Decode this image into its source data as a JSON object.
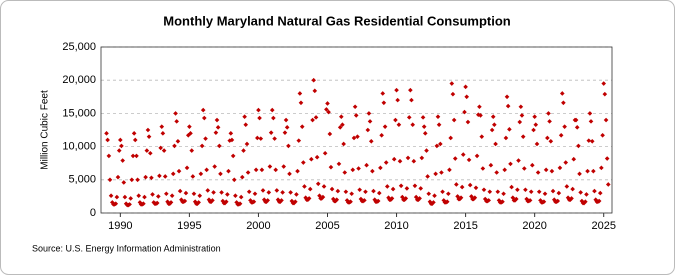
{
  "chart_data": {
    "type": "scatter",
    "title": "Monthly Maryland Natural Gas Residential Consumption",
    "y_label": "Million Cubic Feet",
    "source": "Source: U.S. Energy Information Administration",
    "color": "#c00000",
    "grid": true,
    "xlim": [
      1988.6,
      2025.6
    ],
    "xticks": [
      1990,
      1995,
      2000,
      2005,
      2010,
      2015,
      2020,
      2025
    ],
    "ylim": [
      0,
      25000
    ],
    "yticks": [
      0,
      {
        "value": 5000,
        "label": "5,000"
      },
      {
        "value": 10000,
        "label": "10,000"
      },
      {
        "value": 15000,
        "label": "15,000"
      },
      {
        "value": 20000,
        "label": "20,000"
      },
      {
        "value": 25000,
        "label": "25,000"
      }
    ],
    "x": [
      1989.0,
      1989.08,
      1989.17,
      1989.25,
      1989.33,
      1989.42,
      1989.5,
      1989.58,
      1989.67,
      1989.75,
      1989.83,
      1989.92,
      1990.0,
      1990.08,
      1990.17,
      1990.25,
      1990.33,
      1990.42,
      1990.5,
      1990.58,
      1990.67,
      1990.75,
      1990.83,
      1990.92,
      1991.0,
      1991.08,
      1991.17,
      1991.25,
      1991.33,
      1991.42,
      1991.5,
      1991.58,
      1991.67,
      1991.75,
      1991.83,
      1991.92,
      1992.0,
      1992.08,
      1992.17,
      1992.25,
      1992.33,
      1992.42,
      1992.5,
      1992.58,
      1992.67,
      1992.75,
      1992.83,
      1992.92,
      1993.0,
      1993.08,
      1993.17,
      1993.25,
      1993.33,
      1993.42,
      1993.5,
      1993.58,
      1993.67,
      1993.75,
      1993.83,
      1993.92,
      1994.0,
      1994.08,
      1994.17,
      1994.25,
      1994.33,
      1994.42,
      1994.5,
      1994.58,
      1994.67,
      1994.75,
      1994.83,
      1994.92,
      1995.0,
      1995.08,
      1995.17,
      1995.25,
      1995.33,
      1995.42,
      1995.5,
      1995.58,
      1995.67,
      1995.75,
      1995.83,
      1995.92,
      1996.0,
      1996.08,
      1996.17,
      1996.25,
      1996.33,
      1996.42,
      1996.5,
      1996.58,
      1996.67,
      1996.75,
      1996.83,
      1996.92,
      1997.0,
      1997.08,
      1997.17,
      1997.25,
      1997.33,
      1997.42,
      1997.5,
      1997.58,
      1997.67,
      1997.75,
      1997.83,
      1997.92,
      1998.0,
      1998.08,
      1998.17,
      1998.25,
      1998.33,
      1998.42,
      1998.5,
      1998.58,
      1998.67,
      1998.75,
      1998.83,
      1998.92,
      1999.0,
      1999.08,
      1999.17,
      1999.25,
      1999.33,
      1999.42,
      1999.5,
      1999.58,
      1999.67,
      1999.75,
      1999.83,
      1999.92,
      2000.0,
      2000.08,
      2000.17,
      2000.25,
      2000.33,
      2000.42,
      2000.5,
      2000.58,
      2000.67,
      2000.75,
      2000.83,
      2000.92,
      2001.0,
      2001.08,
      2001.17,
      2001.25,
      2001.33,
      2001.42,
      2001.5,
      2001.58,
      2001.67,
      2001.75,
      2001.83,
      2001.92,
      2002.0,
      2002.08,
      2002.17,
      2002.25,
      2002.33,
      2002.42,
      2002.5,
      2002.58,
      2002.67,
      2002.75,
      2002.83,
      2002.92,
      2003.0,
      2003.08,
      2003.17,
      2003.25,
      2003.33,
      2003.42,
      2003.5,
      2003.58,
      2003.67,
      2003.75,
      2003.83,
      2003.92,
      2004.0,
      2004.08,
      2004.17,
      2004.25,
      2004.33,
      2004.42,
      2004.5,
      2004.58,
      2004.67,
      2004.75,
      2004.83,
      2004.92,
      2005.0,
      2005.08,
      2005.17,
      2005.25,
      2005.33,
      2005.42,
      2005.5,
      2005.58,
      2005.67,
      2005.75,
      2005.83,
      2005.92,
      2006.0,
      2006.08,
      2006.17,
      2006.25,
      2006.33,
      2006.42,
      2006.5,
      2006.58,
      2006.67,
      2006.75,
      2006.83,
      2006.92,
      2007.0,
      2007.08,
      2007.17,
      2007.25,
      2007.33,
      2007.42,
      2007.5,
      2007.58,
      2007.67,
      2007.75,
      2007.83,
      2007.92,
      2008.0,
      2008.08,
      2008.17,
      2008.25,
      2008.33,
      2008.42,
      2008.5,
      2008.58,
      2008.67,
      2008.75,
      2008.83,
      2008.92,
      2009.0,
      2009.08,
      2009.17,
      2009.25,
      2009.33,
      2009.42,
      2009.5,
      2009.58,
      2009.67,
      2009.75,
      2009.83,
      2009.92,
      2010.0,
      2010.08,
      2010.17,
      2010.25,
      2010.33,
      2010.42,
      2010.5,
      2010.58,
      2010.67,
      2010.75,
      2010.83,
      2010.92,
      2011.0,
      2011.08,
      2011.17,
      2011.25,
      2011.33,
      2011.42,
      2011.5,
      2011.58,
      2011.67,
      2011.75,
      2011.83,
      2011.92,
      2012.0,
      2012.08,
      2012.17,
      2012.25,
      2012.33,
      2012.42,
      2012.5,
      2012.58,
      2012.67,
      2012.75,
      2012.83,
      2012.92,
      2013.0,
      2013.08,
      2013.17,
      2013.25,
      2013.33,
      2013.42,
      2013.5,
      2013.58,
      2013.67,
      2013.75,
      2013.83,
      2013.92,
      2014.0,
      2014.08,
      2014.17,
      2014.25,
      2014.33,
      2014.42,
      2014.5,
      2014.58,
      2014.67,
      2014.75,
      2014.83,
      2014.92,
      2015.0,
      2015.08,
      2015.17,
      2015.25,
      2015.33,
      2015.42,
      2015.5,
      2015.58,
      2015.67,
      2015.75,
      2015.83,
      2015.92,
      2016.0,
      2016.08,
      2016.17,
      2016.25,
      2016.33,
      2016.42,
      2016.5,
      2016.58,
      2016.67,
      2016.75,
      2016.83,
      2016.92,
      2017.0,
      2017.08,
      2017.17,
      2017.25,
      2017.33,
      2017.42,
      2017.5,
      2017.58,
      2017.67,
      2017.75,
      2017.83,
      2017.92,
      2018.0,
      2018.08,
      2018.17,
      2018.25,
      2018.33,
      2018.42,
      2018.5,
      2018.58,
      2018.67,
      2018.75,
      2018.83,
      2018.92,
      2019.0,
      2019.08,
      2019.17,
      2019.25,
      2019.33,
      2019.42,
      2019.5,
      2019.58,
      2019.67,
      2019.75,
      2019.83,
      2019.92,
      2020.0,
      2020.08,
      2020.17,
      2020.25,
      2020.33,
      2020.42,
      2020.5,
      2020.58,
      2020.67,
      2020.75,
      2020.83,
      2020.92,
      2021.0,
      2021.08,
      2021.17,
      2021.25,
      2021.33,
      2021.42,
      2021.5,
      2021.58,
      2021.67,
      2021.75,
      2021.83,
      2021.92,
      2022.0,
      2022.08,
      2022.17,
      2022.25,
      2022.33,
      2022.42,
      2022.5,
      2022.58,
      2022.67,
      2022.75,
      2022.83,
      2022.92,
      2023.0,
      2023.08,
      2023.17,
      2023.25,
      2023.33,
      2023.42,
      2023.5,
      2023.58,
      2023.67,
      2023.75,
      2023.83,
      2023.92,
      2024.0,
      2024.08,
      2024.17,
      2024.25,
      2024.33,
      2024.42,
      2024.5,
      2024.58,
      2024.67,
      2024.75,
      2024.83,
      2024.92,
      2025.0,
      2025.08,
      2025.17,
      2025.25,
      2025.33
    ],
    "values": [
      12000,
      11000,
      8600,
      5000,
      2600,
      1600,
      1300,
      1300,
      1400,
      2400,
      5400,
      9400,
      11000,
      10100,
      7900,
      4600,
      2400,
      1400,
      1200,
      1200,
      1300,
      2200,
      5000,
      8600,
      12000,
      11000,
      8600,
      5000,
      2600,
      1600,
      1300,
      1300,
      1400,
      2400,
      5400,
      9400,
      12500,
      11500,
      9000,
      5300,
      2800,
      1600,
      1400,
      1400,
      1500,
      2500,
      5600,
      9800,
      13000,
      12000,
      9400,
      5500,
      2900,
      1700,
      1400,
      1400,
      1600,
      2600,
      5900,
      10100,
      15000,
      13800,
      10800,
      6300,
      3300,
      2000,
      1700,
      1700,
      1800,
      3000,
      6800,
      11700,
      13000,
      12000,
      9400,
      5500,
      2900,
      1700,
      1400,
      1400,
      1600,
      2600,
      5900,
      10100,
      15500,
      14300,
      11200,
      6500,
      3400,
      2000,
      1700,
      1700,
      1900,
      3100,
      7000,
      12100,
      14000,
      12900,
      10100,
      5900,
      3100,
      1800,
      1500,
      1500,
      1700,
      2800,
      6300,
      10900,
      12000,
      11000,
      8600,
      5000,
      2600,
      1600,
      1300,
      1300,
      1400,
      2400,
      5400,
      9400,
      14500,
      13300,
      10400,
      6100,
      3200,
      1900,
      1600,
      1600,
      1700,
      2900,
      6500,
      11300,
      15500,
      14300,
      11200,
      6500,
      3400,
      2000,
      1700,
      1700,
      1900,
      3100,
      7000,
      12100,
      15500,
      14300,
      11200,
      6500,
      3400,
      2000,
      1700,
      1700,
      1900,
      3100,
      7000,
      12100,
      14000,
      12900,
      10100,
      5900,
      3100,
      1800,
      1500,
      1500,
      1700,
      2800,
      6300,
      10900,
      18000,
      16600,
      13000,
      7600,
      4000,
      2300,
      2000,
      2000,
      2200,
      3600,
      8100,
      14000,
      20000,
      18400,
      14400,
      8400,
      4400,
      2600,
      2200,
      2200,
      2400,
      4000,
      9000,
      15600,
      16500,
      15200,
      11900,
      6900,
      3600,
      2100,
      1800,
      1800,
      2000,
      3300,
      7400,
      12900,
      14500,
      13300,
      10400,
      6100,
      3200,
      1900,
      1600,
      1600,
      1700,
      2900,
      6500,
      11300,
      16000,
      14700,
      11500,
      6700,
      3500,
      2100,
      1800,
      1800,
      1900,
      3200,
      7200,
      12500,
      15000,
      13800,
      10800,
      6300,
      3300,
      2000,
      1700,
      1700,
      1800,
      3000,
      6800,
      11700,
      18000,
      16600,
      13000,
      7600,
      4000,
      2300,
      2000,
      2000,
      2200,
      3600,
      8100,
      14000,
      18500,
      17000,
      13300,
      7800,
      4100,
      2400,
      2000,
      2000,
      2200,
      3700,
      8300,
      14400,
      18500,
      17000,
      13300,
      7800,
      4100,
      2400,
      2000,
      2000,
      2200,
      3700,
      8300,
      14400,
      13000,
      12000,
      9400,
      5500,
      2900,
      1700,
      1400,
      1400,
      1600,
      2600,
      5900,
      10100,
      14500,
      13300,
      10400,
      6100,
      3200,
      1900,
      1600,
      1600,
      1700,
      2900,
      6500,
      11300,
      19500,
      17900,
      14000,
      8200,
      4300,
      2500,
      2100,
      2100,
      2300,
      3900,
      8800,
      15200,
      19000,
      17500,
      13700,
      8000,
      4200,
      2500,
      2100,
      2100,
      2300,
      3800,
      8600,
      14800,
      16000,
      14700,
      11500,
      6700,
      3500,
      2100,
      1800,
      1800,
      1900,
      3200,
      7200,
      12500,
      14500,
      13300,
      10400,
      6100,
      3200,
      1900,
      1600,
      1600,
      1700,
      2900,
      6500,
      11300,
      17500,
      16100,
      12600,
      7400,
      3900,
      2300,
      1900,
      1900,
      2100,
      3500,
      7900,
      13700,
      16000,
      14700,
      11500,
      6700,
      3500,
      2100,
      1800,
      1800,
      1900,
      3200,
      7200,
      12500,
      14500,
      13300,
      10400,
      6100,
      3200,
      1900,
      1600,
      1600,
      1700,
      2900,
      6500,
      11300,
      15000,
      13800,
      10800,
      6300,
      3300,
      2000,
      1700,
      1700,
      1800,
      3000,
      6800,
      11700,
      18000,
      16600,
      13000,
      7600,
      4000,
      2300,
      2000,
      2000,
      2200,
      3600,
      8100,
      14000,
      14000,
      12900,
      10100,
      5900,
      3100,
      1800,
      1500,
      1500,
      1700,
      2800,
      6300,
      10900,
      15000,
      13800,
      10800,
      6300,
      3300,
      2000,
      1700,
      1700,
      1800,
      3000,
      6800,
      11700,
      19500,
      17900,
      14000,
      8200,
      4300
    ]
  }
}
